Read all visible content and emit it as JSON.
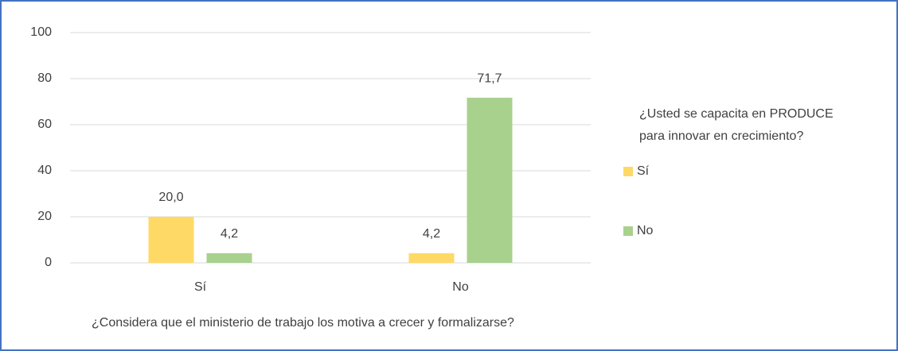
{
  "chart_data": {
    "type": "bar",
    "categories": [
      "Sí",
      "No"
    ],
    "series": [
      {
        "name": "Sí",
        "color": "#ffd966",
        "values": [
          20.0,
          4.2
        ],
        "value_labels": [
          "20,0",
          "4,2"
        ]
      },
      {
        "name": "No",
        "color": "#a9d18e",
        "values": [
          4.2,
          71.7
        ],
        "value_labels": [
          "4,2",
          "71,7"
        ]
      }
    ],
    "xlabel": "¿Considera que el ministerio de trabajo los motiva a crecer y formalizarse?",
    "legend_title": [
      "¿Usted se capacita en PRODUCE",
      "para innovar en crecimiento?"
    ],
    "ylim": [
      0,
      100
    ],
    "yticks": [
      0,
      20,
      40,
      60,
      80,
      100
    ],
    "grid": true,
    "legend": "right"
  }
}
